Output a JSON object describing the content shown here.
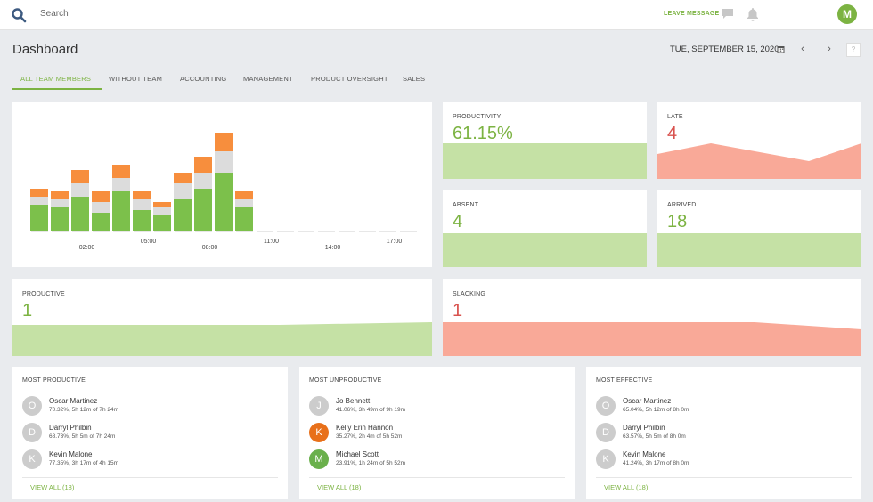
{
  "topbar": {
    "search_placeholder": "Search",
    "leave_message": "LEAVE MESSAGE",
    "avatar_initial": "M"
  },
  "header": {
    "title": "Dashboard",
    "date": "TUE, SEPTEMBER 15, 2020",
    "help": "?"
  },
  "tabs": [
    {
      "label": "ALL TEAM MEMBERS",
      "active": true
    },
    {
      "label": "WITHOUT TEAM",
      "active": false
    },
    {
      "label": "ACCOUNTING",
      "active": false
    },
    {
      "label": "MANAGEMENT",
      "active": false
    },
    {
      "label": "PRODUCT OVERSIGHT",
      "active": false
    },
    {
      "label": "SALES",
      "active": false
    }
  ],
  "stats": {
    "productivity": {
      "label": "PRODUCTIVITY",
      "value": "61.15%"
    },
    "late": {
      "label": "LATE",
      "value": "4"
    },
    "absent": {
      "label": "ABSENT",
      "value": "4"
    },
    "arrived": {
      "label": "ARRIVED",
      "value": "18"
    },
    "productive": {
      "label": "PRODUCTIVE",
      "value": "1"
    },
    "slacking": {
      "label": "SLACKING",
      "value": "1"
    }
  },
  "colors": {
    "accent": "#7cb342",
    "green_fill": "#c5e1a5",
    "red_fill": "#f9a998",
    "bar_green": "#7cc04b",
    "bar_gray": "#dcdcdc",
    "bar_orange": "#f78e3d"
  },
  "chart_data": {
    "type": "bar",
    "stacked": true,
    "x_tick_labels": [
      "02:00",
      "05:00",
      "08:00",
      "11:00",
      "14:00",
      "17:00"
    ],
    "series": [
      {
        "values": [
          10,
          9,
          13,
          7,
          15,
          8,
          6,
          12,
          16,
          22,
          9,
          0,
          0,
          0,
          0,
          0,
          0,
          0,
          0
        ]
      },
      {
        "values": [
          3,
          3,
          5,
          4,
          5,
          4,
          3,
          6,
          6,
          8,
          3,
          0,
          0,
          0,
          0,
          0,
          0,
          0,
          0
        ]
      },
      {
        "values": [
          3,
          3,
          5,
          4,
          5,
          3,
          2,
          4,
          6,
          7,
          3,
          0,
          0,
          0,
          0,
          0,
          0,
          0,
          0
        ]
      }
    ],
    "ymax": 40
  },
  "lists": [
    {
      "title": "MOST PRODUCTIVE",
      "view_all": "VIEW ALL (18)",
      "people": [
        {
          "initial": "O",
          "name": "Oscar Martinez",
          "stat": "70.32%, 5h 12m of 7h 24m",
          "color": "#cccccc"
        },
        {
          "initial": "D",
          "name": "Darryl Philbin",
          "stat": "68.73%, 5h 5m of 7h 24m",
          "color": "#cccccc"
        },
        {
          "initial": "K",
          "name": "Kevin Malone",
          "stat": "77.35%, 3h 17m of 4h 15m",
          "color": "#cccccc"
        }
      ]
    },
    {
      "title": "MOST UNPRODUCTIVE",
      "view_all": "VIEW ALL (18)",
      "people": [
        {
          "initial": "J",
          "name": "Jo Bennett",
          "stat": "41.06%, 3h 49m of 9h 19m",
          "color": "#cccccc"
        },
        {
          "initial": "K",
          "name": "Kelly Erin Hannon",
          "stat": "35.27%, 2h 4m of 5h 52m",
          "color": "#e8701a"
        },
        {
          "initial": "M",
          "name": "Michael Scott",
          "stat": "23.91%, 1h 24m of 5h 52m",
          "color": "#6ab04c"
        }
      ]
    },
    {
      "title": "MOST EFFECTIVE",
      "view_all": "VIEW ALL (18)",
      "people": [
        {
          "initial": "O",
          "name": "Oscar Martinez",
          "stat": "65.04%, 5h 12m of 8h 0m",
          "color": "#cccccc"
        },
        {
          "initial": "D",
          "name": "Darryl Philbin",
          "stat": "63.57%, 5h 5m of 8h 0m",
          "color": "#cccccc"
        },
        {
          "initial": "K",
          "name": "Kevin Malone",
          "stat": "41.24%, 3h 17m of 8h 0m",
          "color": "#cccccc"
        }
      ]
    }
  ]
}
